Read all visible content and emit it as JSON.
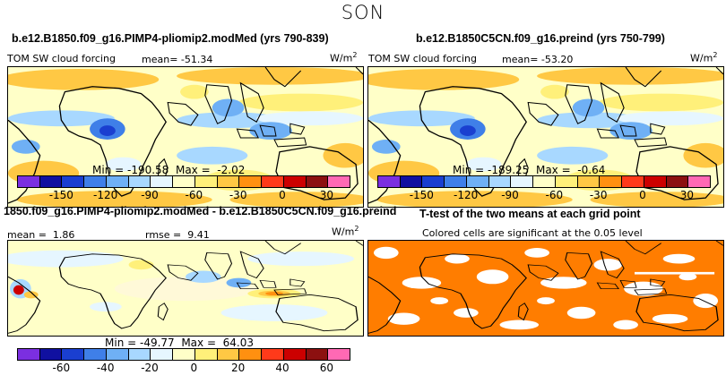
{
  "suptitle": "SON",
  "colors": {
    "scale": [
      "#7b2fe0",
      "#1010a0",
      "#1a3fd0",
      "#3f7fe8",
      "#6fb0f5",
      "#a8d8ff",
      "#e6f6ff",
      "#ffffc8",
      "#fff07a",
      "#ffc844",
      "#ff9010",
      "#ff3a1a",
      "#cc0000",
      "#8c1010",
      "#ff69b4"
    ],
    "land": "#000000",
    "sig": "#ff7d00"
  },
  "panels": {
    "top_left": {
      "title": "b.e12.B1850.f09_g16.PIMP4-pliomip2.modMed (yrs 790-839)",
      "field_label": "TOM SW cloud forcing",
      "mean_label": "mean=",
      "mean_value": "-51.34",
      "units": "W/m",
      "units_exp": "2",
      "min_label": "Min =",
      "min_value": "-190.58",
      "max_label": "Max =",
      "max_value": "-2.02",
      "ticks": [
        "-150",
        "-120",
        "-90",
        "-60",
        "-30",
        "0",
        "30"
      ]
    },
    "top_right": {
      "title": "b.e12.B1850C5CN.f09_g16.preind (yrs 750-799)",
      "field_label": "TOM SW cloud forcing",
      "mean_label": "mean=",
      "mean_value": "-53.20",
      "units": "W/m",
      "units_exp": "2",
      "min_label": "Min =",
      "min_value": "-189.25",
      "max_label": "Max =",
      "max_value": "-0.64",
      "ticks": [
        "-150",
        "-120",
        "-90",
        "-60",
        "-30",
        "0",
        "30"
      ]
    },
    "bottom_left": {
      "title": "1850.f09_g16.PIMP4-pliomip2.modMed - b.e12.B1850C5CN.f09_g16.preind",
      "mean_label": "mean =",
      "mean_value": "1.86",
      "rmse_label": "rmse =",
      "rmse_value": "9.41",
      "units": "W/m",
      "units_exp": "2",
      "min_label": "Min =",
      "min_value": "-49.77",
      "max_label": "Max =",
      "max_value": "64.03",
      "ticks": [
        "-60",
        "-40",
        "-20",
        "0",
        "20",
        "40",
        "60"
      ]
    },
    "bottom_right": {
      "title": "T-test of the two means at each grid point",
      "subtitle": "Colored cells are significant at the 0.05 level"
    }
  }
}
